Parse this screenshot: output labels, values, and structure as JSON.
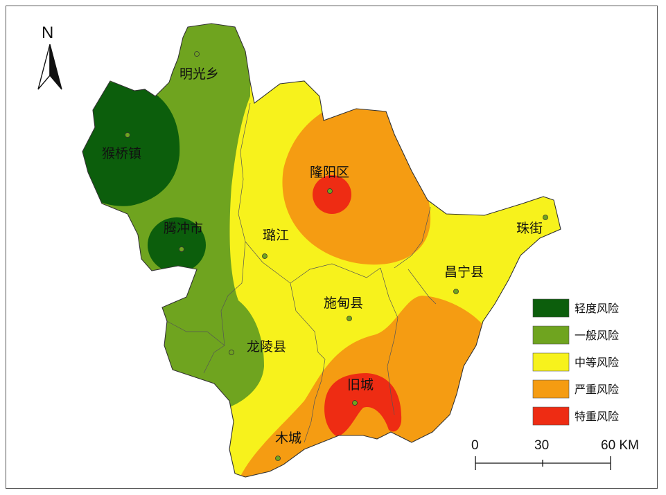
{
  "map": {
    "north_label": "N",
    "places": [
      {
        "key": "mingguang",
        "name": "明光乡"
      },
      {
        "key": "houqiao",
        "name": "猴桥镇"
      },
      {
        "key": "tengchong",
        "name": "腾冲市"
      },
      {
        "key": "longyang",
        "name": "隆阳区"
      },
      {
        "key": "lujiang",
        "name": "璐江"
      },
      {
        "key": "zhujie",
        "name": "珠街"
      },
      {
        "key": "changning",
        "name": "昌宁县"
      },
      {
        "key": "shidian",
        "name": "施甸县"
      },
      {
        "key": "longling",
        "name": "龙陵县"
      },
      {
        "key": "jiucheng",
        "name": "旧城"
      },
      {
        "key": "mucheng",
        "name": "木城"
      }
    ],
    "legend": [
      {
        "label": "轻度风险",
        "color": "#0c5e0c"
      },
      {
        "label": "一般风险",
        "color": "#6fa41f"
      },
      {
        "label": "中等风险",
        "color": "#f7f21c"
      },
      {
        "label": "严重风险",
        "color": "#f59c12"
      },
      {
        "label": "特重风险",
        "color": "#ee2c13"
      }
    ],
    "scale_bar": {
      "ticks": [
        "0",
        "30",
        "60 KM"
      ]
    }
  }
}
